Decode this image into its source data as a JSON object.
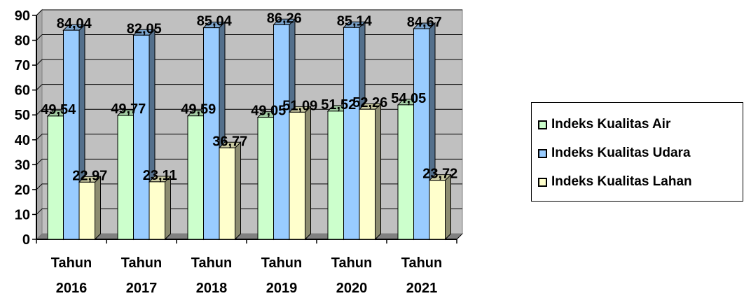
{
  "chart_data": {
    "type": "bar",
    "categories": [
      [
        "Tahun",
        "2016"
      ],
      [
        "Tahun",
        "2017"
      ],
      [
        "Tahun",
        "2018"
      ],
      [
        "Tahun",
        "2019"
      ],
      [
        "Tahun",
        "2020"
      ],
      [
        "Tahun",
        "2021"
      ]
    ],
    "series": [
      {
        "name": "Indeks Kualitas Air",
        "values": [
          49.54,
          49.77,
          49.59,
          49.05,
          51.52,
          54.05
        ],
        "labels": [
          "49,54",
          "49,77",
          "49,59",
          "49,05",
          "51,52",
          "54,05"
        ],
        "color": "#ccffcc"
      },
      {
        "name": "Indeks Kualitas Udara",
        "values": [
          84.04,
          82.05,
          85.04,
          86.26,
          85.14,
          84.67
        ],
        "labels": [
          "84,04",
          "82,05",
          "85,04",
          "86,26",
          "85,14",
          "84,67"
        ],
        "color": "#99ccff"
      },
      {
        "name": "Indeks Kualitas Lahan",
        "values": [
          22.97,
          23.11,
          36.77,
          51.09,
          52.26,
          23.72
        ],
        "labels": [
          "22,97",
          "23,11",
          "36,77",
          "51,09",
          "52,26",
          "23,72"
        ],
        "color": "#ffffcc"
      }
    ],
    "ylim": [
      0,
      90
    ],
    "yticks": [
      "0",
      "10",
      "20",
      "30",
      "40",
      "50",
      "60",
      "70",
      "80",
      "90"
    ],
    "grid": true,
    "plot_background": "#c0c0c0",
    "legend_position": "right"
  }
}
